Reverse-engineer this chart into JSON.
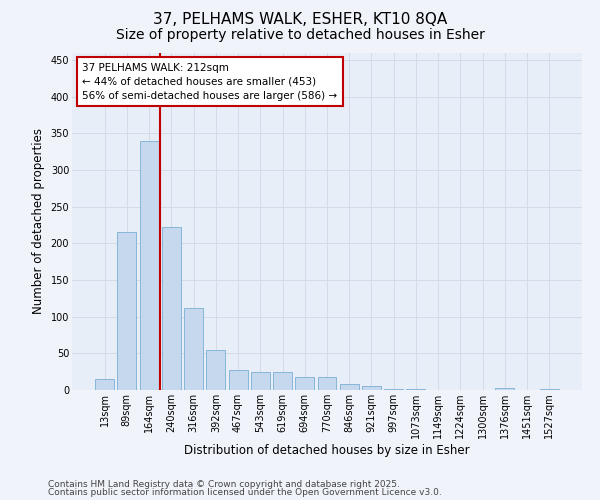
{
  "title_line1": "37, PELHAMS WALK, ESHER, KT10 8QA",
  "title_line2": "Size of property relative to detached houses in Esher",
  "xlabel": "Distribution of detached houses by size in Esher",
  "ylabel": "Number of detached properties",
  "categories": [
    "13sqm",
    "89sqm",
    "164sqm",
    "240sqm",
    "316sqm",
    "392sqm",
    "467sqm",
    "543sqm",
    "619sqm",
    "694sqm",
    "770sqm",
    "846sqm",
    "921sqm",
    "997sqm",
    "1073sqm",
    "1149sqm",
    "1224sqm",
    "1300sqm",
    "1376sqm",
    "1451sqm",
    "1527sqm"
  ],
  "values": [
    15,
    215,
    340,
    222,
    112,
    54,
    27,
    25,
    25,
    18,
    18,
    8,
    5,
    2,
    1,
    0,
    0,
    0,
    3,
    0,
    2
  ],
  "bar_color": "#c5d8ed",
  "bar_edge_color": "#7aafd4",
  "highlight_line_color": "#c00000",
  "annotation_text": "37 PELHAMS WALK: 212sqm\n← 44% of detached houses are smaller (453)\n56% of semi-detached houses are larger (586) →",
  "annotation_box_color": "#ffffff",
  "annotation_box_edge_color": "#c00000",
  "ylim": [
    0,
    460
  ],
  "yticks": [
    0,
    50,
    100,
    150,
    200,
    250,
    300,
    350,
    400,
    450
  ],
  "grid_color": "#d0d8e8",
  "bg_color": "#e8eef8",
  "fig_bg_color": "#f0f4fa",
  "footer_line1": "Contains HM Land Registry data © Crown copyright and database right 2025.",
  "footer_line2": "Contains public sector information licensed under the Open Government Licence v3.0.",
  "title_fontsize": 11,
  "subtitle_fontsize": 10,
  "label_fontsize": 8.5,
  "tick_fontsize": 7,
  "footer_fontsize": 6.5,
  "annot_fontsize": 7.5
}
